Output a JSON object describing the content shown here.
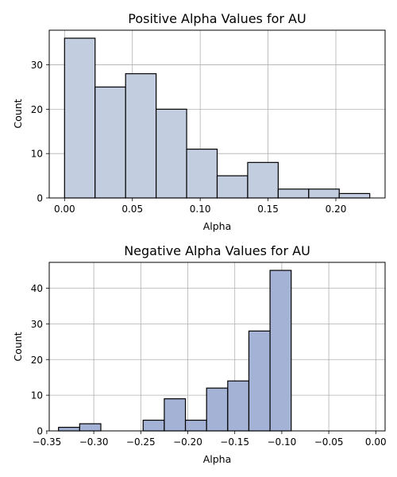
{
  "chart_data": [
    {
      "type": "bar",
      "title": "Positive Alpha Values for AU",
      "xlabel": "Alpha",
      "ylabel": "Count",
      "bins": [
        {
          "x0": 0.0,
          "x1": 0.0225,
          "count": 36
        },
        {
          "x0": 0.0225,
          "x1": 0.045,
          "count": 25
        },
        {
          "x0": 0.045,
          "x1": 0.0675,
          "count": 28
        },
        {
          "x0": 0.0675,
          "x1": 0.09,
          "count": 20
        },
        {
          "x0": 0.09,
          "x1": 0.1125,
          "count": 11
        },
        {
          "x0": 0.1125,
          "x1": 0.135,
          "count": 5
        },
        {
          "x0": 0.135,
          "x1": 0.1575,
          "count": 8
        },
        {
          "x0": 0.1575,
          "x1": 0.18,
          "count": 2
        },
        {
          "x0": 0.18,
          "x1": 0.2025,
          "count": 2
        },
        {
          "x0": 0.2025,
          "x1": 0.225,
          "count": 1
        }
      ],
      "xlim": [
        -0.0113,
        0.2363
      ],
      "ylim": [
        0,
        37.8
      ],
      "xticks": [
        0.0,
        0.05,
        0.1,
        0.15,
        0.2
      ],
      "xtick_labels": [
        "0.00",
        "0.05",
        "0.10",
        "0.15",
        "0.20"
      ],
      "yticks": [
        0,
        10,
        20,
        30
      ],
      "ytick_labels": [
        "0",
        "10",
        "20",
        "30"
      ],
      "grid": true,
      "bar_color": "#c3cde0",
      "edge_color": "#000000"
    },
    {
      "type": "bar",
      "title": "Negative Alpha Values for AU",
      "xlabel": "Alpha",
      "ylabel": "Count",
      "bins": [
        {
          "x0": -0.3375,
          "x1": -0.315,
          "count": 1
        },
        {
          "x0": -0.315,
          "x1": -0.2925,
          "count": 2
        },
        {
          "x0": -0.2925,
          "x1": -0.27,
          "count": 0
        },
        {
          "x0": -0.27,
          "x1": -0.2475,
          "count": 0
        },
        {
          "x0": -0.2475,
          "x1": -0.225,
          "count": 3
        },
        {
          "x0": -0.225,
          "x1": -0.2025,
          "count": 9
        },
        {
          "x0": -0.2025,
          "x1": -0.18,
          "count": 3
        },
        {
          "x0": -0.18,
          "x1": -0.1575,
          "count": 12
        },
        {
          "x0": -0.1575,
          "x1": -0.135,
          "count": 14
        },
        {
          "x0": -0.135,
          "x1": -0.1125,
          "count": 28
        },
        {
          "x0": -0.1125,
          "x1": -0.09,
          "count": 45
        }
      ],
      "xlim": [
        -0.3474,
        0.0099
      ],
      "ylim": [
        0,
        47.25
      ],
      "xticks": [
        -0.35,
        -0.3,
        -0.25,
        -0.2,
        -0.15,
        -0.1,
        -0.05,
        0.0
      ],
      "xtick_labels": [
        "−0.35",
        "−0.30",
        "−0.25",
        "−0.20",
        "−0.15",
        "−0.10",
        "−0.05",
        "0.00"
      ],
      "yticks": [
        0,
        10,
        20,
        30,
        40
      ],
      "ytick_labels": [
        "0",
        "10",
        "20",
        "30",
        "40"
      ],
      "grid": true,
      "bar_color": "#a3b2d5",
      "edge_color": "#000000"
    }
  ]
}
